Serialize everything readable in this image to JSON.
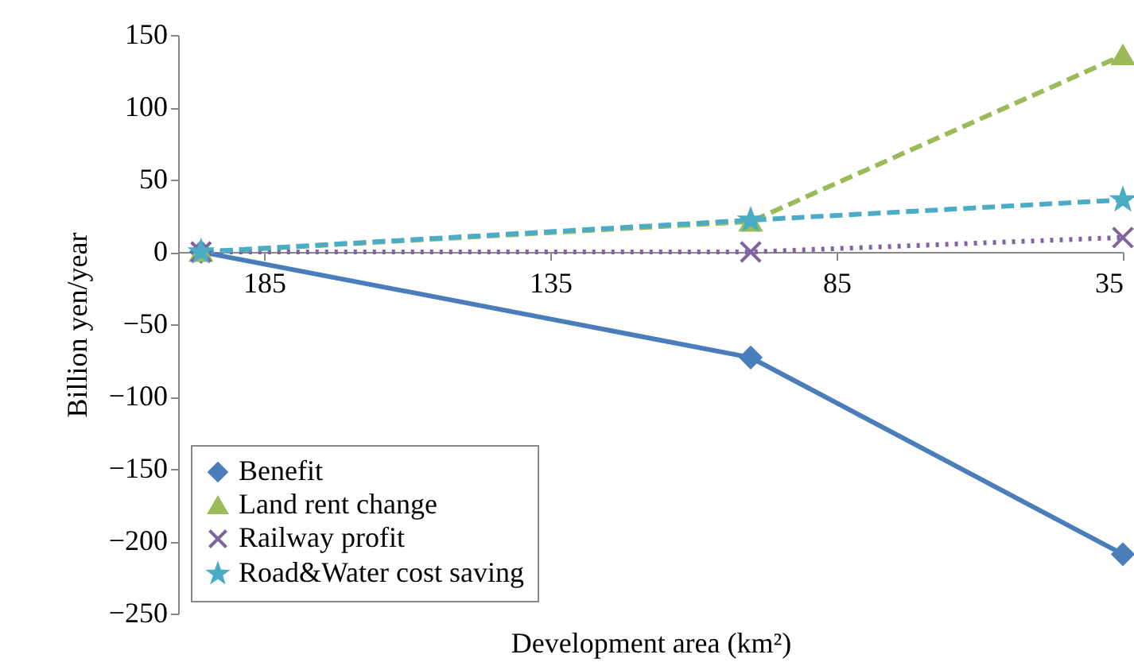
{
  "chart_data": {
    "type": "line",
    "xlabel": "Development area (km²)",
    "ylabel": "Billion yen/year",
    "x": [
      196,
      100,
      35
    ],
    "xlim": [
      200,
      35
    ],
    "xticks": [
      185,
      135,
      85,
      35
    ],
    "ylim": [
      -250,
      150
    ],
    "yticks": [
      -250,
      -200,
      -150,
      -100,
      -50,
      0,
      50,
      100,
      150
    ],
    "grid": false,
    "legend": "bottom left",
    "series": [
      {
        "name": "Benefit",
        "color": "#4a7ebb",
        "values": [
          0,
          -73,
          -209
        ],
        "marker": "diamond",
        "line_style": "solid"
      },
      {
        "name": "Land rent change",
        "color": "#9bbb59",
        "values": [
          0,
          21,
          136
        ],
        "marker": "triangle",
        "line_style": "dashed"
      },
      {
        "name": "Railway profit",
        "color": "#8064a2",
        "values": [
          0,
          0,
          10
        ],
        "marker": "cross",
        "line_style": "dotted"
      },
      {
        "name": "Road&Water cost saving",
        "color": "#4bacc6",
        "values": [
          0,
          22,
          36
        ],
        "marker": "star",
        "line_style": "dashed"
      }
    ]
  }
}
